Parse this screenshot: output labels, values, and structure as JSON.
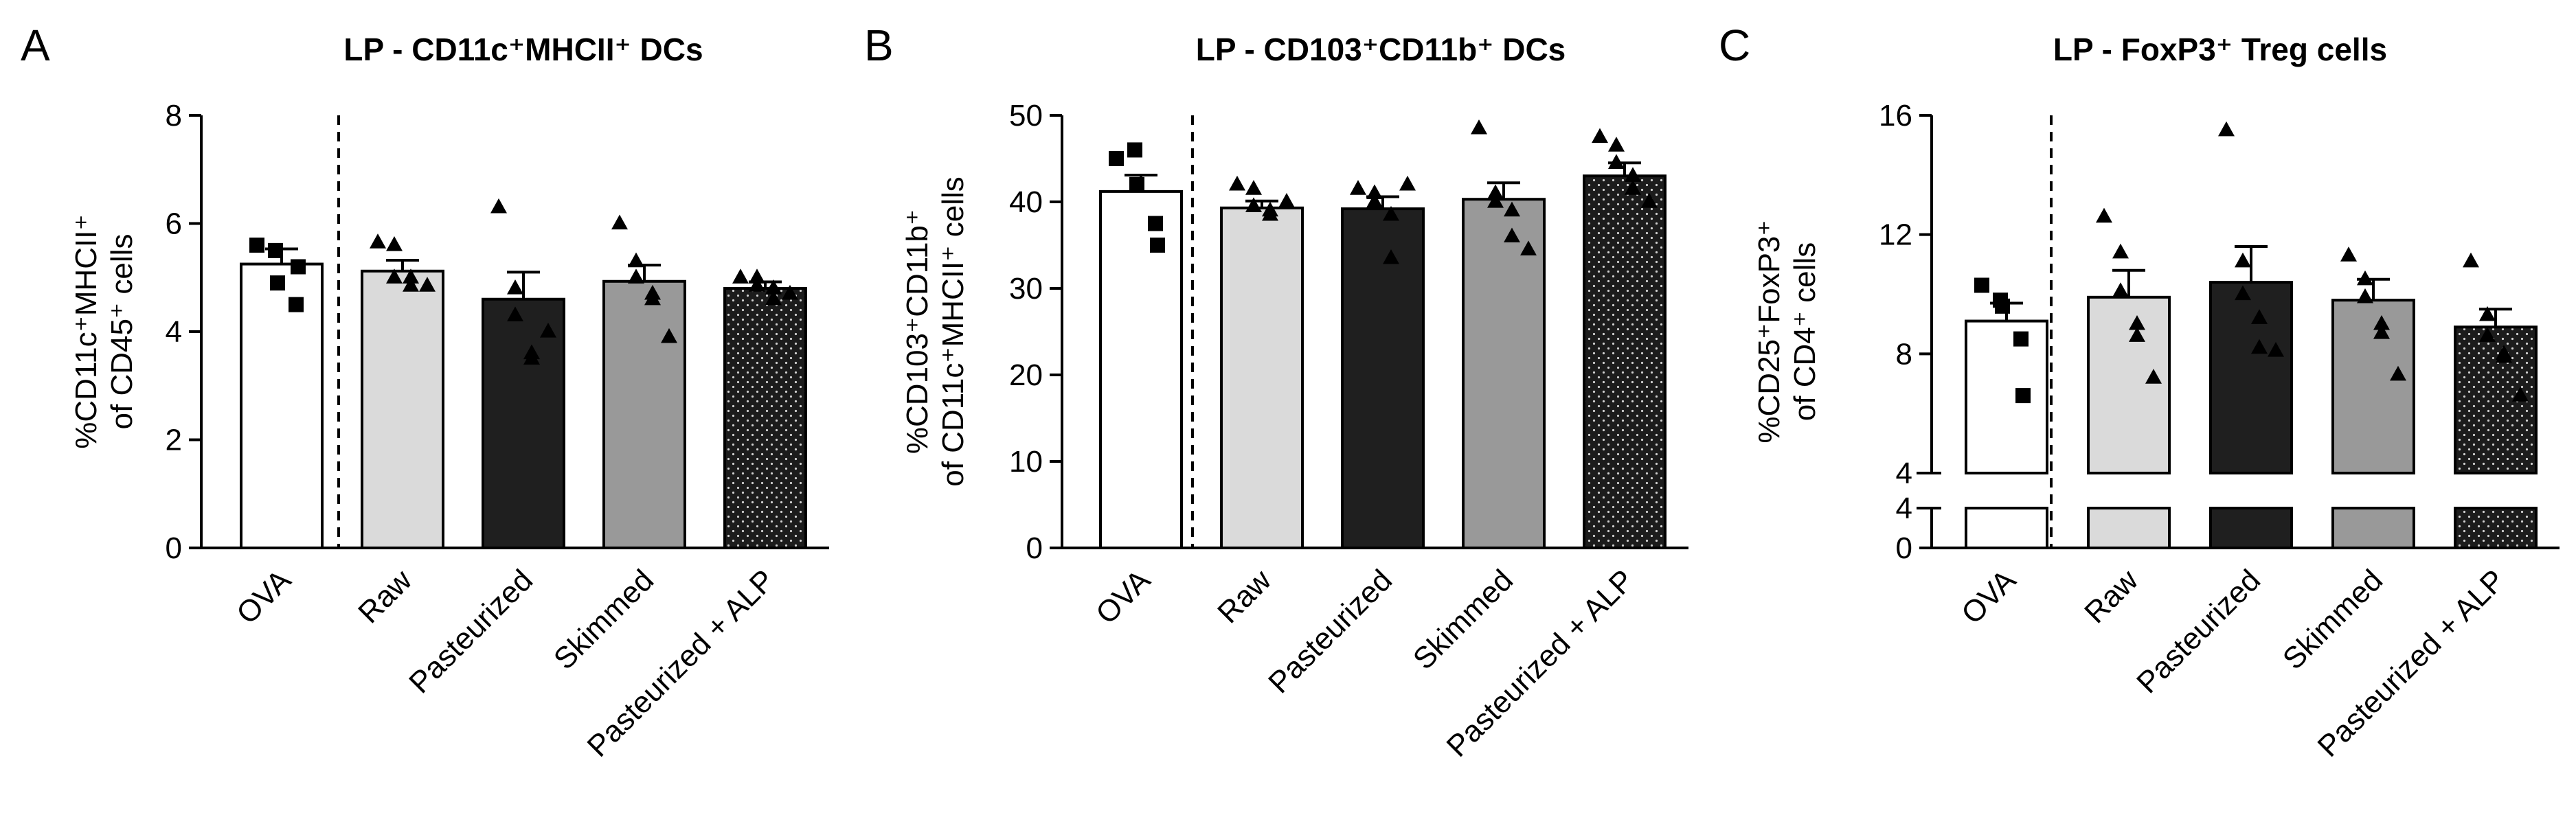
{
  "chart_data": [
    {
      "type": "bar",
      "panel": "A",
      "title": "LP - CD11c⁺MHCII⁺ DCs",
      "ylabel_line1": "%CD11c⁺MHCII⁺",
      "ylabel_line2": "of CD45⁺ cells",
      "xlabel": "",
      "ylim": [
        0,
        8
      ],
      "yticks": [
        0,
        2,
        4,
        6,
        8
      ],
      "categories": [
        "OVA",
        "Raw",
        "Pasteurized",
        "Skimmed",
        "Pasteurized + ALP"
      ],
      "values": [
        5.25,
        5.12,
        4.6,
        4.93,
        4.8
      ],
      "sem": [
        0.28,
        0.2,
        0.5,
        0.3,
        0.12
      ],
      "points": [
        [
          5.6,
          5.5,
          4.9,
          4.5,
          5.2
        ],
        [
          5.65,
          5.6,
          5.0,
          4.85,
          5.0,
          4.85
        ],
        [
          6.3,
          4.8,
          4.3,
          3.5,
          3.6,
          4.0
        ],
        [
          6.0,
          5.3,
          5.0,
          4.7,
          4.6,
          3.9
        ],
        [
          5.0,
          4.85,
          5.0,
          4.8,
          4.6,
          4.7
        ]
      ],
      "grid": false
    },
    {
      "type": "bar",
      "panel": "B",
      "title": "LP - CD103⁺CD11b⁺ DCs",
      "ylabel_line1": "%CD103⁺CD11b⁺",
      "ylabel_line2": "of CD11c⁺MHCII⁺ cells",
      "xlabel": "",
      "ylim": [
        0,
        50
      ],
      "yticks": [
        0,
        10,
        20,
        30,
        40,
        50
      ],
      "categories": [
        "OVA",
        "Raw",
        "Pasteurized",
        "Skimmed",
        "Pasteurized + ALP"
      ],
      "values": [
        41.2,
        39.3,
        39.2,
        40.3,
        43.0
      ],
      "sem": [
        1.9,
        0.8,
        1.4,
        1.9,
        1.5
      ],
      "points": [
        [
          45.0,
          46.0,
          42.0,
          37.5,
          35.0
        ],
        [
          42.0,
          41.5,
          39.5,
          39.0,
          38.5,
          40.0
        ],
        [
          41.5,
          41.0,
          40.0,
          38.5,
          33.5,
          42.0
        ],
        [
          48.5,
          41.0,
          40.0,
          39.0,
          36.0,
          34.5
        ],
        [
          47.5,
          46.5,
          44.5,
          43.0,
          41.5,
          40.0
        ]
      ],
      "grid": false
    },
    {
      "type": "bar",
      "panel": "C",
      "title": "LP - FoxP3⁺ Treg cells",
      "ylabel_line1": "%CD25⁺FoxP3⁺",
      "ylabel_line2": "of CD4⁺ cells",
      "xlabel": "",
      "ylim_upper": [
        4,
        16
      ],
      "ylim_lower": [
        0,
        4
      ],
      "yticks_upper": [
        4,
        8,
        12,
        16
      ],
      "yticks_lower": [
        0,
        4
      ],
      "categories": [
        "OVA",
        "Raw",
        "Pasteurized",
        "Skimmed",
        "Pasteurized + ALP"
      ],
      "values": [
        9.1,
        9.9,
        10.4,
        9.8,
        8.9
      ],
      "sem": [
        0.6,
        0.9,
        1.2,
        0.7,
        0.6
      ],
      "points": [
        [
          10.3,
          9.8,
          9.6,
          8.5,
          6.6
        ],
        [
          12.6,
          11.4,
          10.1,
          9.0,
          8.6,
          7.2
        ],
        [
          15.5,
          11.1,
          10.0,
          9.2,
          8.2,
          8.1
        ],
        [
          11.3,
          10.5,
          9.9,
          9.0,
          8.7,
          7.3
        ],
        [
          11.1,
          9.3,
          8.6,
          8.0,
          7.9,
          6.6
        ]
      ],
      "grid": false
    }
  ],
  "colors": {
    "OVA": "#ffffff",
    "Raw": "#dadada",
    "Pasteurized": "#1f1f1f",
    "Skimmed": "#999999",
    "Pasteurized + ALP": "#1c1c1c"
  }
}
